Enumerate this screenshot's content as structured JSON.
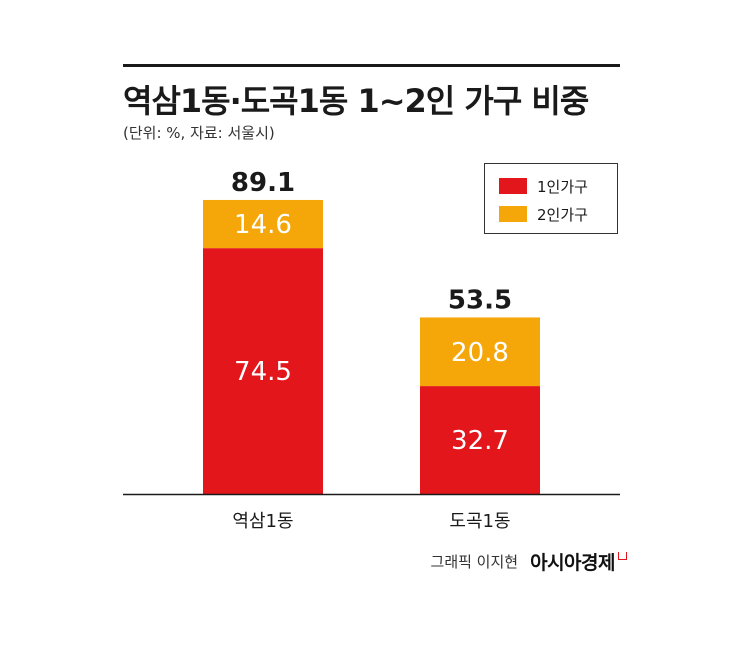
{
  "title": "역삼1동·도곡1동 1~2인 가구 비중",
  "subtitle": "(단위: %, 자료: 서울시)",
  "credit": "그래픽 이지현",
  "brand": "아시아경제",
  "colors": {
    "one_person": "#e3161b",
    "two_person": "#f5a70a"
  },
  "chart_data": {
    "type": "bar",
    "stacked": true,
    "categories": [
      "역삼1동",
      "도곡1동"
    ],
    "series": [
      {
        "name": "1인가구",
        "values": [
          74.5,
          32.7
        ]
      },
      {
        "name": "2인가구",
        "values": [
          14.6,
          20.8
        ]
      }
    ],
    "totals": [
      89.1,
      53.5
    ],
    "value_labels": {
      "1인가구": [
        "74.5",
        "32.7"
      ],
      "2인가구": [
        "14.6",
        "20.8"
      ],
      "totals": [
        "89.1",
        "53.5"
      ]
    },
    "legend_position": "top-right",
    "ylim": [
      0,
      100
    ],
    "grid": false
  }
}
